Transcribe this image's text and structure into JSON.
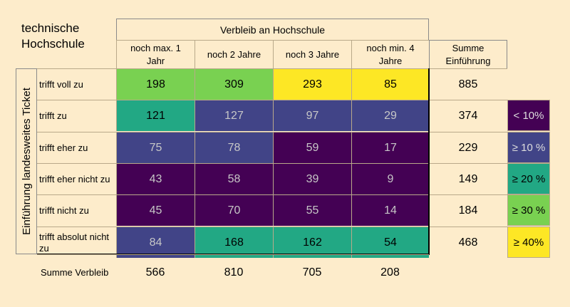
{
  "title": "technische\nHochschule",
  "group_header": "Verbleib an Hochschule",
  "columns": [
    "noch max. 1 Jahr",
    "noch 2 Jahre",
    "noch 3 Jahre",
    "noch min. 4 Jahre"
  ],
  "sum_header": "Summe Einführung",
  "side_label": "Einführung landesweites Ticket",
  "rows": [
    {
      "label": "trifft voll zu",
      "values": [
        "198",
        "309",
        "293",
        "85"
      ],
      "sum": "885"
    },
    {
      "label": "trifft zu",
      "values": [
        "121",
        "127",
        "97",
        "29"
      ],
      "sum": "374"
    },
    {
      "label": "trifft eher zu",
      "values": [
        "75",
        "78",
        "59",
        "17"
      ],
      "sum": "229"
    },
    {
      "label": "trifft eher nicht zu",
      "values": [
        "43",
        "58",
        "39",
        "9"
      ],
      "sum": "149"
    },
    {
      "label": "trifft nicht zu",
      "values": [
        "45",
        "70",
        "55",
        "14"
      ],
      "sum": "184"
    },
    {
      "label": "trifft absolut nicht zu",
      "values": [
        "84",
        "168",
        "162",
        "54"
      ],
      "sum": "468"
    }
  ],
  "cell_colors": [
    [
      "#79d151",
      "#79d151",
      "#fde725",
      "#fde725"
    ],
    [
      "#22a884",
      "#414487",
      "#414487",
      "#414487"
    ],
    [
      "#414487",
      "#414487",
      "#440154",
      "#440154"
    ],
    [
      "#440154",
      "#440154",
      "#440154",
      "#440154"
    ],
    [
      "#440154",
      "#440154",
      "#440154",
      "#440154"
    ],
    [
      "#414487",
      "#22a884",
      "#22a884",
      "#22a884"
    ]
  ],
  "legend": [
    {
      "label": "< 10%",
      "color": "#440154"
    },
    {
      "label": "≥ 10 %",
      "color": "#414487"
    },
    {
      "label": "≥ 20 %",
      "color": "#22a884"
    },
    {
      "label": "≥ 30 %",
      "color": "#79d151"
    },
    {
      "label": "≥ 40%",
      "color": "#fde725"
    }
  ],
  "bottom": {
    "label": "Summe Verbleib",
    "values": [
      "566",
      "810",
      "705",
      "208"
    ]
  }
}
